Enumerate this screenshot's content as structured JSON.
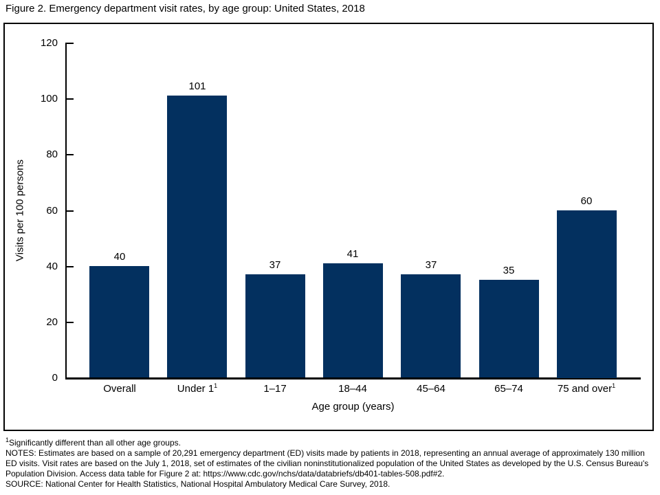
{
  "figure": {
    "title": "Figure 2. Emergency department visit rates, by age group: United States, 2018"
  },
  "chart_data": {
    "type": "bar",
    "title": "Figure 2. Emergency department visit rates, by age group: United States, 2018",
    "categories": [
      "Overall",
      "Under 1",
      "1–17",
      "18–44",
      "45–64",
      "65–74",
      "75 and over"
    ],
    "category_superscripts": [
      "",
      "1",
      "",
      "",
      "",
      "",
      "1"
    ],
    "values": [
      40,
      101,
      37,
      41,
      37,
      35,
      60
    ],
    "xlabel": "Age group (years)",
    "ylabel": "Visits per 100 persons",
    "ylim": [
      0,
      120
    ],
    "ytick_step": 20,
    "grid": false,
    "legend": false,
    "value_labels_shown": true,
    "bar_color": "#03305F",
    "axis_color": "#000000"
  },
  "footnotes": {
    "sig_sup": "1",
    "sig_text": "Significantly different than all other age groups.",
    "notes": "NOTES: Estimates are based on a sample of 20,291 emergency department (ED) visits made by patients in 2018, representing an annual average of approximately 130 million ED visits. Visit rates are based on the July 1, 2018, set of estimates of the civilian noninstitutionalized population of the United States as developed by the U.S. Census Bureau's Population Division. Access data table for Figure 2 at: https://www.cdc.gov/nchs/data/databriefs/db401-tables-508.pdf#2.",
    "source": "SOURCE: National Center for Health Statistics, National Hospital Ambulatory Medical Care Survey, 2018."
  }
}
